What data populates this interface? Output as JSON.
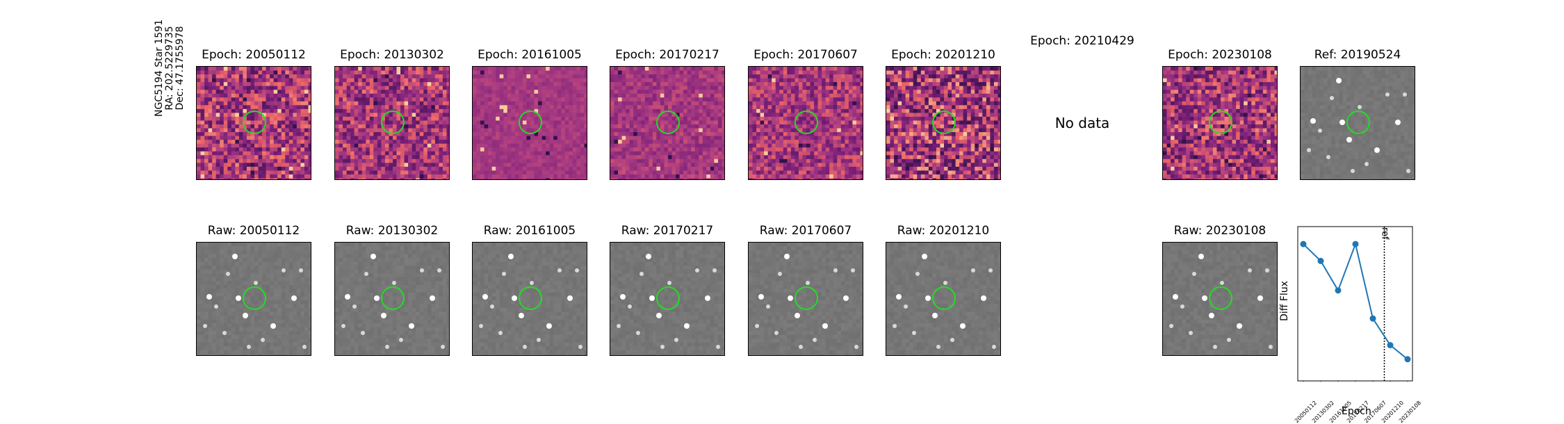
{
  "figure": {
    "side_label": [
      "NGC5194 Star 1591",
      "RA: 202.5229735",
      "Dec: 47.1755978"
    ],
    "no_data_text": "No data"
  },
  "diff_panels": [
    {
      "title": "Epoch: 20050112",
      "has_data": true
    },
    {
      "title": "Epoch: 20130302",
      "has_data": true
    },
    {
      "title": "Epoch: 20161005",
      "has_data": true
    },
    {
      "title": "Epoch: 20170217",
      "has_data": true
    },
    {
      "title": "Epoch: 20170607",
      "has_data": true
    },
    {
      "title": "Epoch: 20201210",
      "has_data": true
    },
    {
      "title": "Epoch: 20210429",
      "has_data": false
    },
    {
      "title": "Epoch: 20230108",
      "has_data": true
    },
    {
      "title": "Ref: 20190524",
      "has_data": true
    }
  ],
  "raw_panels": [
    {
      "title": "Raw: 20050112"
    },
    {
      "title": "Raw: 20130302"
    },
    {
      "title": "Raw: 20161005"
    },
    {
      "title": "Raw: 20170217"
    },
    {
      "title": "Raw: 20170607"
    },
    {
      "title": "Raw: 20201210"
    },
    {
      "title": "Raw: 20230108"
    }
  ],
  "colors": {
    "diff_base": "#a1418a",
    "marker_circle": "#22dd22",
    "raw_base": "#7d7d7d",
    "series_line": "#1f77b4"
  },
  "chart_data": {
    "type": "line",
    "title": "",
    "xlabel": "Epoch",
    "ylabel": "Diff Flux",
    "categories": [
      "20050112",
      "20130302",
      "20161005",
      "20170217",
      "20170607",
      "20201210",
      "20230108"
    ],
    "series": [
      {
        "values": [
          0.92,
          0.8,
          0.59,
          0.92,
          0.39,
          0.2,
          0.1
        ]
      }
    ],
    "ylim": [
      0,
      1
    ],
    "yticks_visible": false,
    "reference_line": {
      "label": "ref",
      "position_between": [
        "20170607",
        "20201210"
      ],
      "style": "dotted"
    },
    "grid": false
  }
}
